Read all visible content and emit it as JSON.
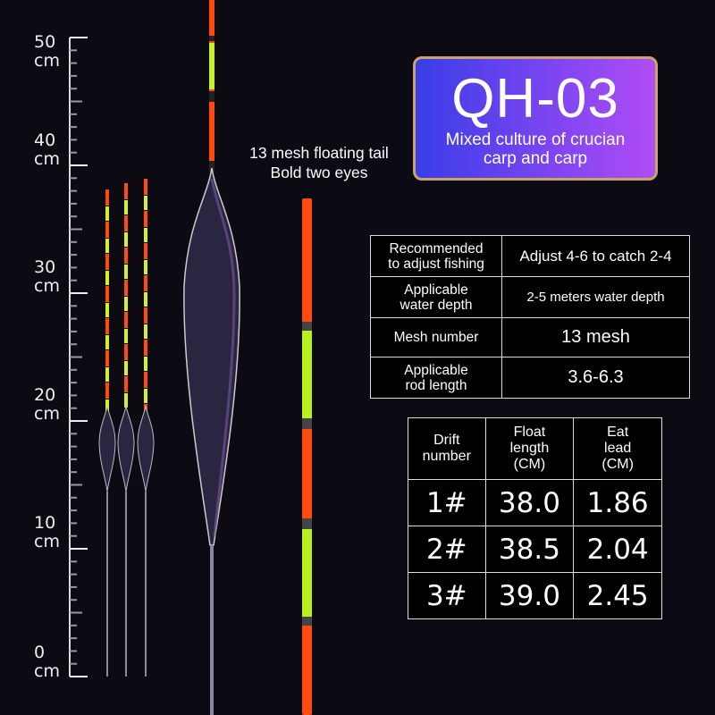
{
  "ruler": {
    "labels": [
      {
        "value": "50",
        "unit": "cm"
      },
      {
        "value": "40",
        "unit": "cm"
      },
      {
        "value": "30",
        "unit": "cm"
      },
      {
        "value": "20",
        "unit": "cm"
      },
      {
        "value": "10",
        "unit": "cm"
      },
      {
        "value": "0",
        "unit": "cm"
      }
    ]
  },
  "badge": {
    "title": "QH-03",
    "subtitle_line1": "Mixed culture of crucian",
    "subtitle_line2": "carp and carp"
  },
  "caption": {
    "line1": "13 mesh floating tail",
    "line2": "Bold two eyes"
  },
  "spec_table": {
    "rows": [
      {
        "label_line1": "Recommended",
        "label_line2": "to adjust fishing",
        "value": "Adjust 4-6 to catch 2-4"
      },
      {
        "label_line1": "Applicable",
        "label_line2": "water depth",
        "value": "2-5 meters water depth"
      },
      {
        "label_line1": "Mesh number",
        "label_line2": "",
        "value": "13 mesh"
      },
      {
        "label_line1": "Applicable",
        "label_line2": "rod length",
        "value": "3.6-6.3"
      }
    ]
  },
  "size_table": {
    "headers": [
      [
        "Drift",
        "number"
      ],
      [
        "Float",
        "length",
        "(CM)"
      ],
      [
        "Eat",
        "lead",
        "(CM)"
      ]
    ],
    "rows": [
      [
        "1#",
        "38.0",
        "1.86"
      ],
      [
        "2#",
        "38.5",
        "2.04"
      ],
      [
        "3#",
        "39.0",
        "2.45"
      ]
    ]
  },
  "colors": {
    "background": "#0c0a12",
    "orange": "#ff4a10",
    "green": "#b8f020",
    "badge_border": "#c9a36a"
  }
}
